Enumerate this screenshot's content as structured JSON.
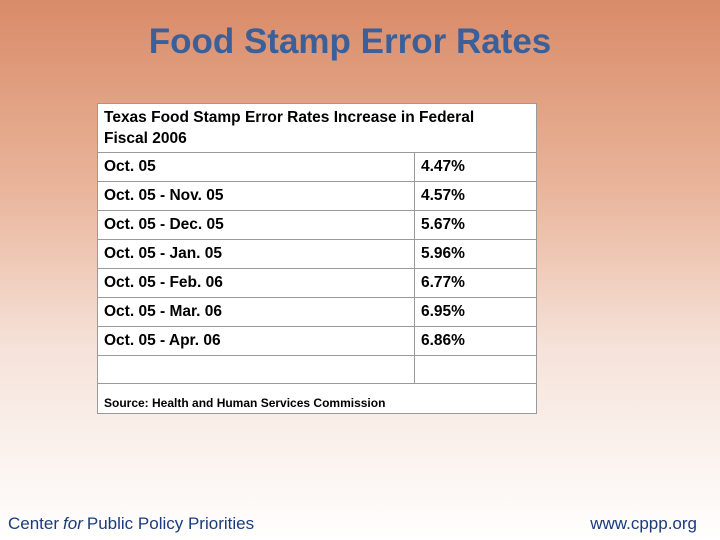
{
  "title": "Food Stamp Error Rates",
  "table": {
    "caption": "Texas Food Stamp Error Rates Increase in Federal Fiscal 2006",
    "rows": [
      [
        "Oct. 05",
        "4.47%"
      ],
      [
        "Oct. 05 - Nov. 05",
        "4.57%"
      ],
      [
        "Oct. 05 - Dec. 05",
        "5.67%"
      ],
      [
        "Oct. 05 - Jan. 05",
        "5.96%"
      ],
      [
        "Oct. 05 - Feb. 06",
        "6.77%"
      ],
      [
        "Oct. 05 - Mar. 06",
        "6.95%"
      ],
      [
        "Oct. 05 - Apr. 06",
        "6.86%"
      ]
    ],
    "source": "Source: Health and Human Services Commission"
  },
  "footer": {
    "left": {
      "before": "Center",
      "italic": "for",
      "after": "Public Policy Priorities"
    },
    "right": "www.cppp.org"
  }
}
